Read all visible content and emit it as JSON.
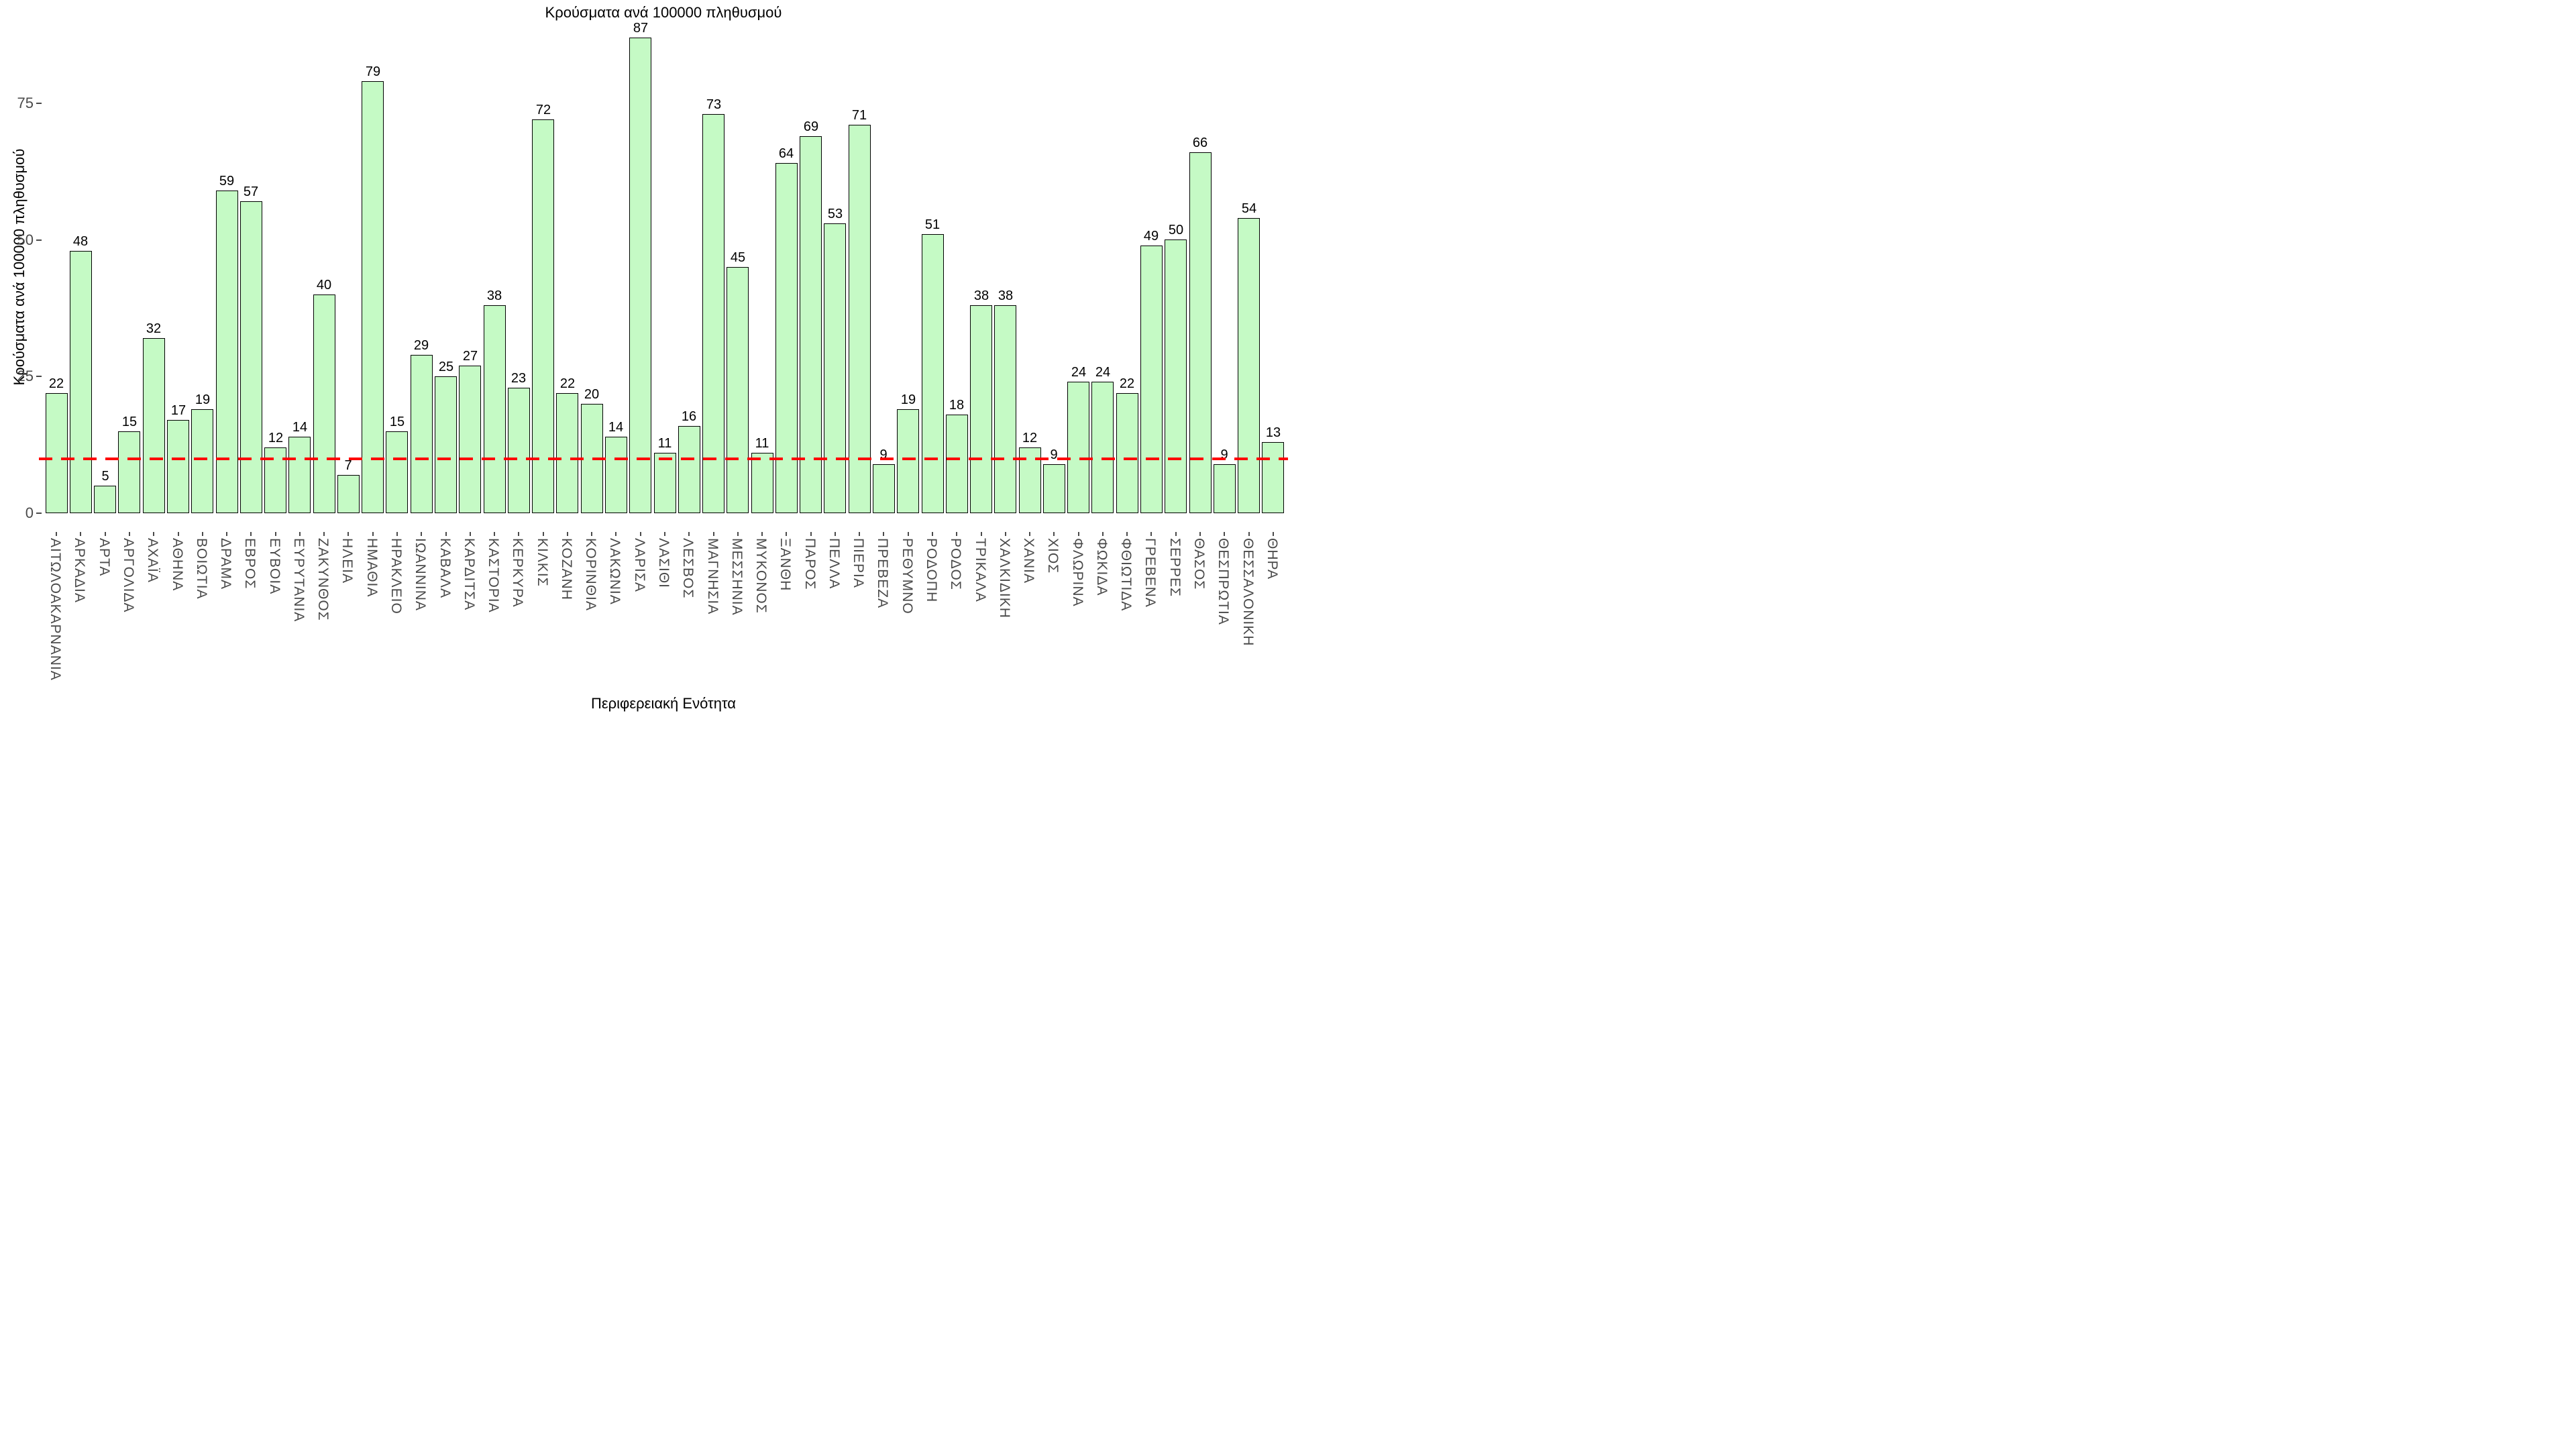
{
  "chart_data": {
    "type": "bar",
    "title": "Κρούσματα ανά 100000 πληθυσμού",
    "ylabel": "Κρούσματα ανά 100000 πληθυσμού",
    "xlabel": "Περιφερειακή Ενότητα",
    "categories": [
      "ΑΙΤΩΛΟΑΚΑΡΝΑΝΙΑ",
      "ΑΡΚΑΔΙΑ",
      "ΑΡΤΑ",
      "ΑΡΓΟΛΙΔΑ",
      "ΑΧΑΪΑ",
      "ΑΘΗΝΑ",
      "ΒΟΙΩΤΙΑ",
      "ΔΡΑΜΑ",
      "ΕΒΡΟΣ",
      "ΕΥΒΟΙΑ",
      "ΕΥΡΥΤΑΝΙΑ",
      "ΖΑΚΥΝΘΟΣ",
      "ΗΛΕΙΑ",
      "ΗΜΑΘΙΑ",
      "ΗΡΑΚΛΕΙΟ",
      "ΙΩΑΝΝΙΝΑ",
      "ΚΑΒΑΛΑ",
      "ΚΑΡΔΙΤΣΑ",
      "ΚΑΣΤΟΡΙΑ",
      "ΚΕΡΚΥΡΑ",
      "ΚΙΛΚΙΣ",
      "ΚΟΖΑΝΗ",
      "ΚΟΡΙΝΘΙΑ",
      "ΛΑΚΩΝΙΑ",
      "ΛΑΡΙΣΑ",
      "ΛΑΣΙΘΙ",
      "ΛΕΣΒΟΣ",
      "ΜΑΓΝΗΣΙΑ",
      "ΜΕΣΣΗΝΙΑ",
      "ΜΥΚΟΝΟΣ",
      "ΞΑΝΘΗ",
      "ΠΑΡΟΣ",
      "ΠΕΛΛΑ",
      "ΠΙΕΡΙΑ",
      "ΠΡΕΒΕΖΑ",
      "ΡΕΘΥΜΝΟ",
      "ΡΟΔΟΠΗ",
      "ΡΟΔΟΣ",
      "ΤΡΙΚΑΛΑ",
      "ΧΑΛΚΙΔΙΚΗ",
      "ΧΑΝΙΑ",
      "ΧΙΟΣ",
      "ΦΛΩΡΙΝΑ",
      "ΦΩΚΙΔΑ",
      "ΦΘΙΩΤΙΔΑ",
      "ΓΡΕΒΕΝΑ",
      "ΣΕΡΡΕΣ",
      "ΘΑΣΟΣ",
      "ΘΕΣΠΡΩΤΙΑ",
      "ΘΕΣΣΑΛΟΝΙΚΗ",
      "ΘΗΡΑ"
    ],
    "values": [
      22,
      48,
      5,
      15,
      32,
      17,
      19,
      59,
      57,
      12,
      14,
      40,
      7,
      79,
      15,
      29,
      25,
      27,
      38,
      23,
      72,
      22,
      20,
      14,
      87,
      11,
      16,
      73,
      45,
      11,
      64,
      69,
      53,
      71,
      9,
      19,
      51,
      18,
      38,
      38,
      12,
      9,
      24,
      24,
      22,
      49,
      50,
      66,
      9,
      54,
      13
    ],
    "yticks": [
      0,
      25,
      50,
      75
    ],
    "ylim": [
      0,
      90
    ],
    "grid": false,
    "legend": "none",
    "bar_fill_color": "#c5fac5",
    "bar_border_color": "#000000",
    "value_label_color": "#000000",
    "tick_label_color": "#4a4a4a",
    "reference_line": {
      "value": 10,
      "color": "#ff0000",
      "style": "dashed"
    }
  }
}
